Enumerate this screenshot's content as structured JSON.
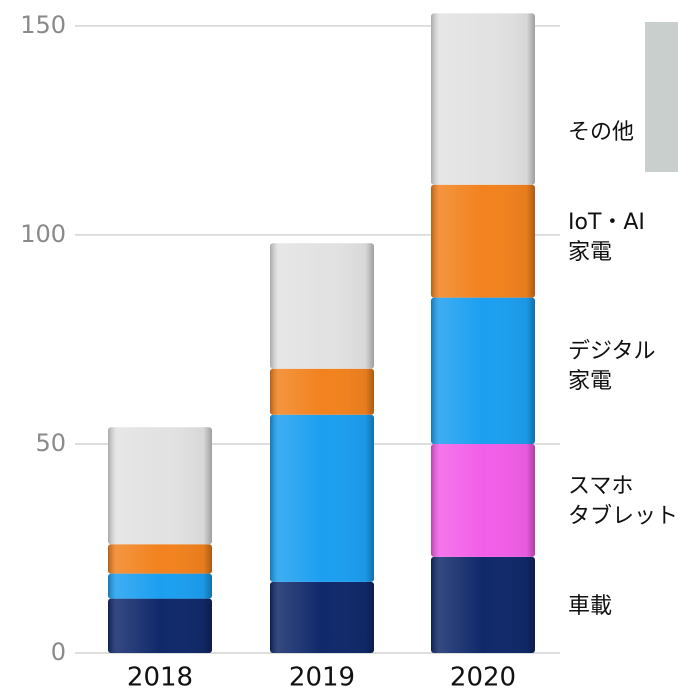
{
  "chart_data": {
    "type": "stacked_bar",
    "categories": [
      "2018",
      "2019",
      "2020"
    ],
    "series": [
      {
        "name": [
          "車載"
        ],
        "color": "#10296a",
        "values": [
          13,
          17,
          23
        ]
      },
      {
        "name": [
          "スマホ",
          "タブレット"
        ],
        "color": "#f25ee8",
        "values": [
          0,
          0,
          27
        ]
      },
      {
        "name": [
          "デジタル",
          "家電"
        ],
        "color": "#1c9ff0",
        "values": [
          6,
          40,
          35
        ]
      },
      {
        "name": [
          "IoT・AI",
          "家電"
        ],
        "color": "#f2821e",
        "values": [
          7,
          11,
          27
        ]
      },
      {
        "name": [
          "その他"
        ],
        "color": "#e2e2e2",
        "values": [
          28,
          30,
          41
        ]
      }
    ],
    "ylim": [
      0,
      155
    ],
    "yticks": [
      0,
      50,
      100,
      150
    ],
    "grid": true
  }
}
